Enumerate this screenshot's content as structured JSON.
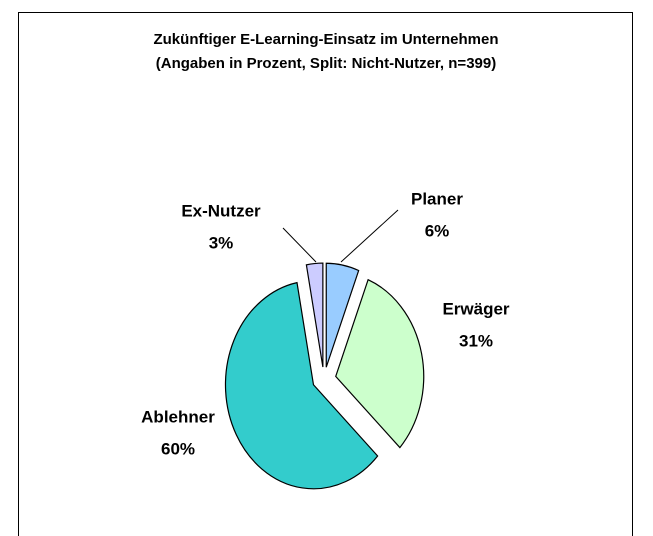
{
  "chart_data": {
    "type": "pie",
    "title": "Zukünftiger E-Learning-Einsatz im Unternehmen",
    "subtitle": "(Angaben in Prozent, Split: Nicht-Nutzer, n=399)",
    "categories": [
      "Planer",
      "Erwäger",
      "Ablehner",
      "Ex-Nutzer"
    ],
    "values": [
      6,
      31,
      60,
      3
    ],
    "value_labels": [
      "6%",
      "31%",
      "60%",
      "3%"
    ],
    "colors": [
      "#99ccff",
      "#ccffcc",
      "#33cccc",
      "#ccccff"
    ]
  }
}
